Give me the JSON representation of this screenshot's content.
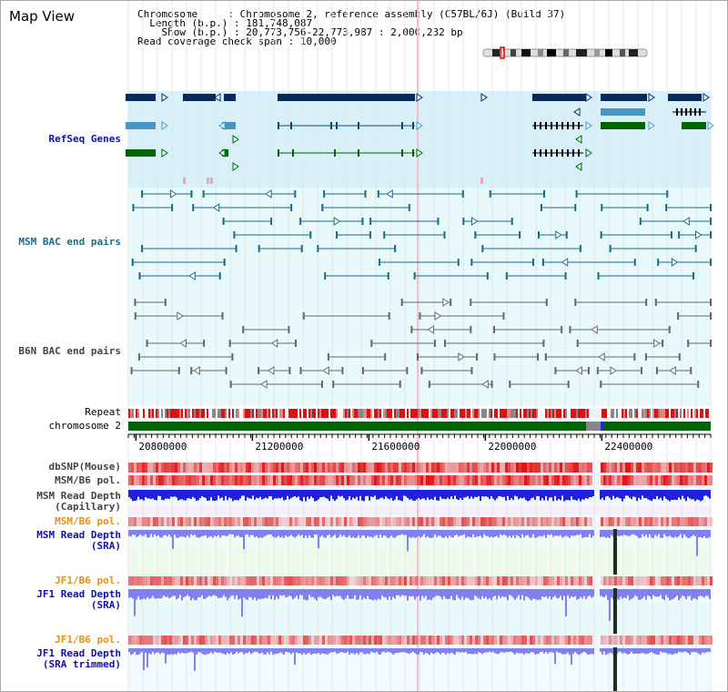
{
  "app": {
    "title": "Map View"
  },
  "info": {
    "chromosome_label": "Chromosome",
    "chromosome_value": "Chromosome 2, reference assembly (C57BL/6J) (Build 37)",
    "length_label": "Length (b.p.)",
    "length_value": "181,748,087",
    "show_label": "Show (b.p.)",
    "show_value": "20,773,756-22,773,987 : 2,000,232 bp",
    "coverage_label": "Read coverage check span",
    "coverage_value": "10,000"
  },
  "tracks": {
    "refseq": "RefSeq Genes",
    "msm_bac": "MSM BAC end pairs",
    "b6n_bac": "B6N BAC end pairs",
    "repeat": "Repeat",
    "chromosome": "chromosome 2",
    "dbsnp": "dbSNP(Mouse)",
    "msm_b6_pol": "MSM/B6 pol.",
    "msm_read_depth_cap": "MSM Read Depth\n(Capillary)",
    "msm_b6_pol2": "MSM/B6 pol.",
    "msm_read_depth_sra": "MSM Read Depth\n(SRA)",
    "jf1_b6_pol": "JF1/B6 pol.",
    "jf1_read_depth_sra": "JF1 Read Depth\n(SRA)",
    "jf1_b6_pol2": "JF1/B6 pol.",
    "jf1_read_depth_trim": "JF1 Read Depth\n(SRA trimmed)"
  },
  "axis": {
    "ticks": [
      {
        "label": "20800000",
        "value": 20800000
      },
      {
        "label": "21200000",
        "value": 21200000
      },
      {
        "label": "21600000",
        "value": 21600000
      },
      {
        "label": "22000000",
        "value": 22000000
      },
      {
        "label": "22400000",
        "value": 22400000
      }
    ],
    "start": 20773756,
    "end": 22773987
  },
  "colors": {
    "gene_dark": "#0a2a5c",
    "gene_mid": "#4a96c0",
    "gene_green": "#006400",
    "refseq_bg": "#d8f0fa",
    "bac_bg": "#e8fafc",
    "msm_bac": "#186a88",
    "b6n_bac": "#666666",
    "chromosome_bar": "#006400",
    "depth_blue": "#2020e0",
    "depth_light": "#8080f0",
    "polymorphism_red": "#e01010"
  }
}
